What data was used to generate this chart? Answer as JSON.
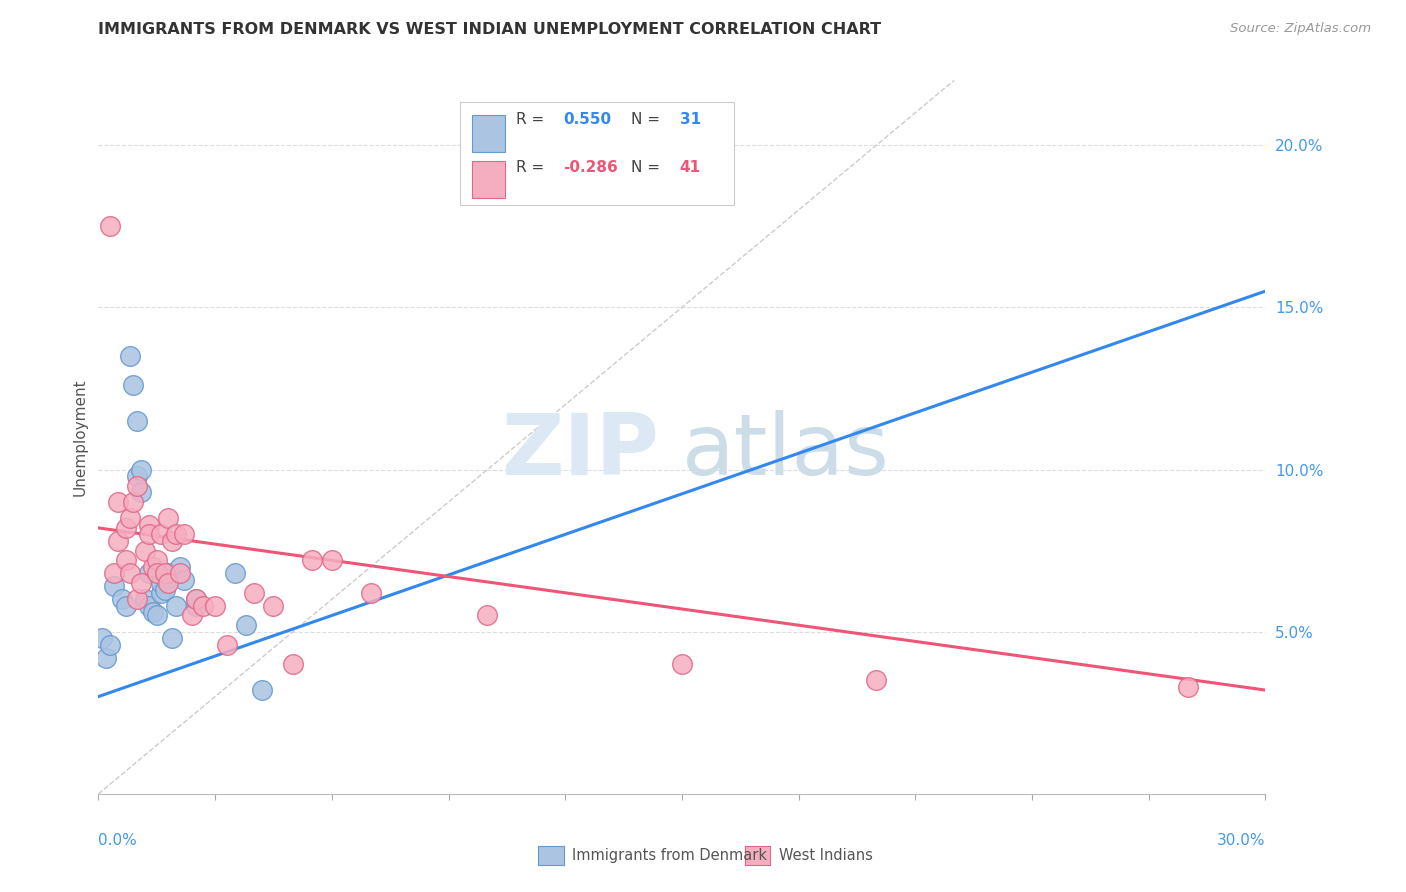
{
  "title": "IMMIGRANTS FROM DENMARK VS WEST INDIAN UNEMPLOYMENT CORRELATION CHART",
  "source": "Source: ZipAtlas.com",
  "ylabel": "Unemployment",
  "right_yticks": [
    0.05,
    0.1,
    0.15,
    0.2
  ],
  "right_ytick_labels": [
    "5.0%",
    "10.0%",
    "15.0%",
    "20.0%"
  ],
  "xlim": [
    0.0,
    0.3
  ],
  "ylim": [
    0.0,
    0.22
  ],
  "blue_R": "0.550",
  "blue_N": "31",
  "pink_R": "-0.286",
  "pink_N": "41",
  "blue_color": "#aac4e2",
  "blue_edge": "#6699cc",
  "pink_color": "#f5aec0",
  "pink_edge": "#e06888",
  "legend1_label": "Immigrants from Denmark",
  "legend2_label": "West Indians",
  "blue_scatter_x": [
    0.001,
    0.002,
    0.003,
    0.004,
    0.006,
    0.007,
    0.008,
    0.009,
    0.01,
    0.01,
    0.011,
    0.011,
    0.012,
    0.013,
    0.013,
    0.014,
    0.015,
    0.015,
    0.016,
    0.016,
    0.017,
    0.018,
    0.019,
    0.02,
    0.021,
    0.022,
    0.025,
    0.025,
    0.035,
    0.038,
    0.042
  ],
  "blue_scatter_y": [
    0.048,
    0.042,
    0.046,
    0.064,
    0.06,
    0.058,
    0.135,
    0.126,
    0.115,
    0.098,
    0.093,
    0.1,
    0.06,
    0.068,
    0.058,
    0.056,
    0.055,
    0.068,
    0.062,
    0.065,
    0.063,
    0.068,
    0.048,
    0.058,
    0.07,
    0.066,
    0.058,
    0.06,
    0.068,
    0.052,
    0.032
  ],
  "pink_scatter_x": [
    0.003,
    0.004,
    0.005,
    0.005,
    0.007,
    0.007,
    0.008,
    0.008,
    0.009,
    0.01,
    0.01,
    0.011,
    0.012,
    0.013,
    0.013,
    0.014,
    0.015,
    0.015,
    0.016,
    0.017,
    0.018,
    0.018,
    0.019,
    0.02,
    0.021,
    0.022,
    0.024,
    0.025,
    0.027,
    0.03,
    0.033,
    0.04,
    0.045,
    0.05,
    0.055,
    0.06,
    0.07,
    0.1,
    0.15,
    0.2,
    0.28
  ],
  "pink_scatter_y": [
    0.175,
    0.068,
    0.09,
    0.078,
    0.082,
    0.072,
    0.085,
    0.068,
    0.09,
    0.06,
    0.095,
    0.065,
    0.075,
    0.083,
    0.08,
    0.07,
    0.072,
    0.068,
    0.08,
    0.068,
    0.085,
    0.065,
    0.078,
    0.08,
    0.068,
    0.08,
    0.055,
    0.06,
    0.058,
    0.058,
    0.046,
    0.062,
    0.058,
    0.04,
    0.072,
    0.072,
    0.062,
    0.055,
    0.04,
    0.035,
    0.033
  ],
  "blue_line_x": [
    0.0,
    0.3
  ],
  "blue_line_y": [
    0.03,
    0.155
  ],
  "pink_line_x": [
    0.0,
    0.3
  ],
  "pink_line_y": [
    0.082,
    0.032
  ],
  "ref_line_x": [
    0.0,
    0.22
  ],
  "ref_line_y": [
    0.0,
    0.22
  ]
}
